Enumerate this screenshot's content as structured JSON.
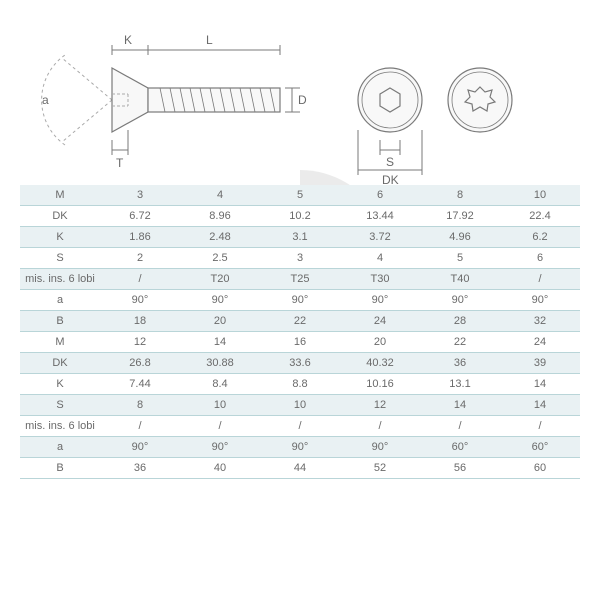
{
  "diagram": {
    "labels": {
      "a": "a",
      "K": "K",
      "L": "L",
      "T": "T",
      "D": "D",
      "S": "S",
      "DK": "DK"
    },
    "stroke_color": "#7a7a7a",
    "dash_color": "#aaaaaa"
  },
  "table": {
    "border_color": "#b9d5d8",
    "even_row_bg": "#e9f1f3",
    "odd_row_bg": "#ffffff",
    "text_color": "#6a6a6a",
    "rows": [
      {
        "label": "M",
        "cells": [
          "3",
          "4",
          "5",
          "6",
          "8",
          "10"
        ]
      },
      {
        "label": "DK",
        "cells": [
          "6.72",
          "8.96",
          "10.2",
          "13.44",
          "17.92",
          "22.4"
        ]
      },
      {
        "label": "K",
        "cells": [
          "1.86",
          "2.48",
          "3.1",
          "3.72",
          "4.96",
          "6.2"
        ]
      },
      {
        "label": "S",
        "cells": [
          "2",
          "2.5",
          "3",
          "4",
          "5",
          "6"
        ]
      },
      {
        "label": "mis. ins. 6 lobi",
        "cells": [
          "/",
          "T20",
          "T25",
          "T30",
          "T40",
          "/"
        ]
      },
      {
        "label": "a",
        "cells": [
          "90°",
          "90°",
          "90°",
          "90°",
          "90°",
          "90°"
        ]
      },
      {
        "label": "B",
        "cells": [
          "18",
          "20",
          "22",
          "24",
          "28",
          "32"
        ]
      },
      {
        "label": "M",
        "cells": [
          "12",
          "14",
          "16",
          "20",
          "22",
          "24"
        ]
      },
      {
        "label": "DK",
        "cells": [
          "26.8",
          "30.88",
          "33.6",
          "40.32",
          "36",
          "39"
        ]
      },
      {
        "label": "K",
        "cells": [
          "7.44",
          "8.4",
          "8.8",
          "10.16",
          "13.1",
          "14"
        ]
      },
      {
        "label": "S",
        "cells": [
          "8",
          "10",
          "10",
          "12",
          "14",
          "14"
        ]
      },
      {
        "label": "mis. ins. 6 lobi",
        "cells": [
          "/",
          "/",
          "/",
          "/",
          "/",
          "/"
        ]
      },
      {
        "label": "a",
        "cells": [
          "90°",
          "90°",
          "90°",
          "90°",
          "60°",
          "60°"
        ]
      },
      {
        "label": "B",
        "cells": [
          "36",
          "40",
          "44",
          "52",
          "56",
          "60"
        ]
      }
    ]
  }
}
